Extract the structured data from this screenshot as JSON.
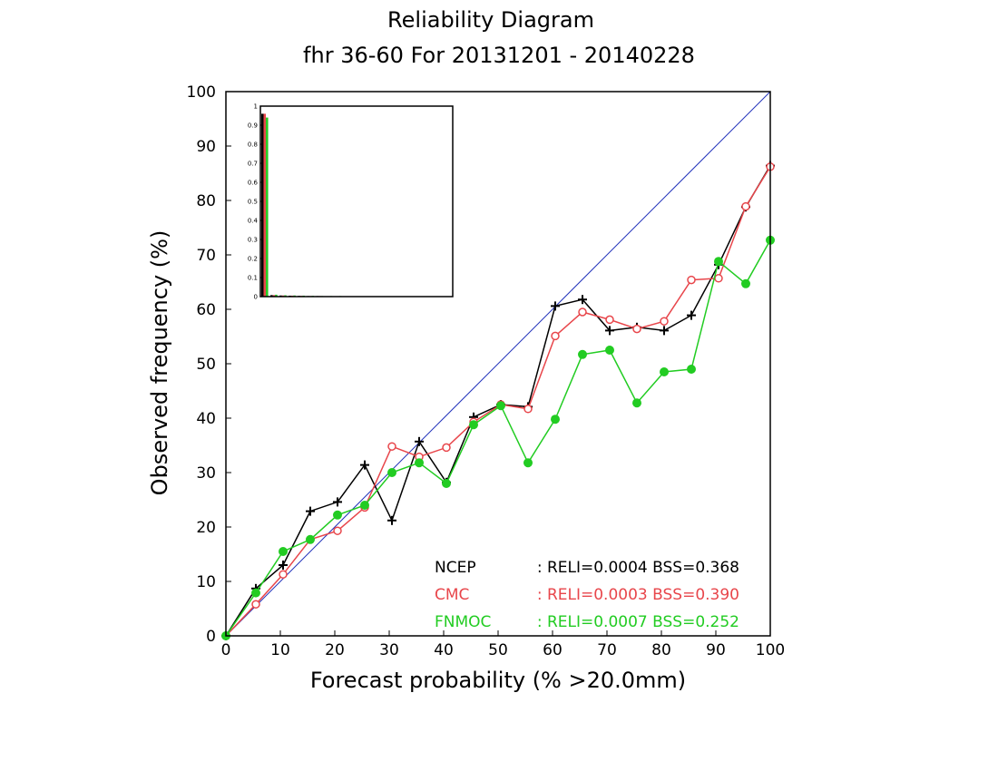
{
  "chart_data": {
    "type": "line",
    "title": "Reliability Diagram",
    "subtitle": "fhr 36-60 For 20131201 - 20140228",
    "xlabel": "Forecast probability (% >20.0mm)",
    "ylabel": "Observed frequency (%)",
    "xlim": [
      0,
      100
    ],
    "ylim": [
      0,
      100
    ],
    "xticks": [
      "0",
      "10",
      "20",
      "30",
      "40",
      "50",
      "60",
      "70",
      "80",
      "90",
      "100"
    ],
    "yticks": [
      "0",
      "10",
      "20",
      "30",
      "40",
      "50",
      "60",
      "70",
      "80",
      "90",
      "100"
    ],
    "diagonal_color": "#2233bb",
    "series": [
      {
        "name": "NCEP",
        "stats": ": RELI=0.0004 BSS=0.368",
        "color": "#000000",
        "marker": "plus",
        "x": [
          0,
          5.5,
          10.5,
          15.5,
          20.5,
          25.5,
          30.5,
          35.5,
          40.5,
          45.5,
          50.5,
          55.5,
          60.5,
          65.5,
          70.5,
          75.5,
          80.5,
          85.5,
          90.5,
          95.5,
          100
        ],
        "y": [
          0,
          8.7,
          13,
          22.9,
          24.6,
          31.4,
          21.2,
          35.7,
          28.2,
          40.2,
          42.5,
          42.1,
          60.6,
          61.8,
          56.1,
          56.7,
          56.1,
          58.9,
          68.2,
          78.8,
          86.4
        ]
      },
      {
        "name": "CMC",
        "stats": ": RELI=0.0003 BSS=0.390",
        "color": "#e8464b",
        "marker": "open-circle",
        "x": [
          0,
          5.5,
          10.5,
          15.5,
          20.5,
          25.5,
          30.5,
          35.5,
          40.5,
          45.5,
          50.5,
          55.5,
          60.5,
          65.5,
          70.5,
          75.5,
          80.5,
          85.5,
          90.5,
          95.5,
          100
        ],
        "y": [
          0,
          5.8,
          11.3,
          17.7,
          19.3,
          23.6,
          34.8,
          32.9,
          34.6,
          39.3,
          42.5,
          41.7,
          55.1,
          59.5,
          58.1,
          56.4,
          57.8,
          65.4,
          65.7,
          78.9,
          86.2
        ]
      },
      {
        "name": "FNMOC",
        "stats": ": RELI=0.0007 BSS=0.252",
        "color": "#22cc22",
        "marker": "filled-circle",
        "x": [
          0,
          5.5,
          10.5,
          15.5,
          20.5,
          25.5,
          30.5,
          35.5,
          40.5,
          45.5,
          50.5,
          55.5,
          60.5,
          65.5,
          70.5,
          75.5,
          80.5,
          85.5,
          90.5,
          95.5,
          100
        ],
        "y": [
          0,
          7.9,
          15.5,
          17.7,
          22.2,
          24,
          30,
          31.8,
          28,
          38.8,
          42.3,
          31.8,
          39.8,
          51.7,
          52.5,
          42.8,
          48.5,
          49,
          68.8,
          64.7,
          72.7
        ]
      }
    ],
    "inset": {
      "type": "bar",
      "ylim": [
        0,
        1
      ],
      "yticks": [
        "0",
        "0.1",
        "0.2",
        "0.3",
        "0.4",
        "0.5",
        "0.6",
        "0.7",
        "0.8",
        "0.9",
        "1"
      ],
      "series": [
        {
          "name": "NCEP",
          "color": "#000000",
          "values": [
            0.96,
            0.008,
            0.006,
            0.005,
            0.004,
            0.003,
            0.003,
            0.002,
            0.002,
            0.002,
            0.002,
            0.002,
            0.002,
            0.002,
            0.002,
            0.002,
            0.002,
            0.002,
            0.002,
            0.002,
            0.002
          ]
        },
        {
          "name": "CMC",
          "color": "#e8464b",
          "values": [
            0.96,
            0.008,
            0.006,
            0.005,
            0.004,
            0.003,
            0.003,
            0.002,
            0.002,
            0.002,
            0.002,
            0.002,
            0.002,
            0.002,
            0.002,
            0.002,
            0.002,
            0.002,
            0.002,
            0.002,
            0.002
          ]
        },
        {
          "name": "FNMOC",
          "color": "#22cc22",
          "values": [
            0.94,
            0.01,
            0.007,
            0.006,
            0.005,
            0.004,
            0.003,
            0.003,
            0.003,
            0.002,
            0.002,
            0.002,
            0.002,
            0.002,
            0.002,
            0.002,
            0.002,
            0.002,
            0.002,
            0.002,
            0.002
          ]
        }
      ]
    }
  }
}
